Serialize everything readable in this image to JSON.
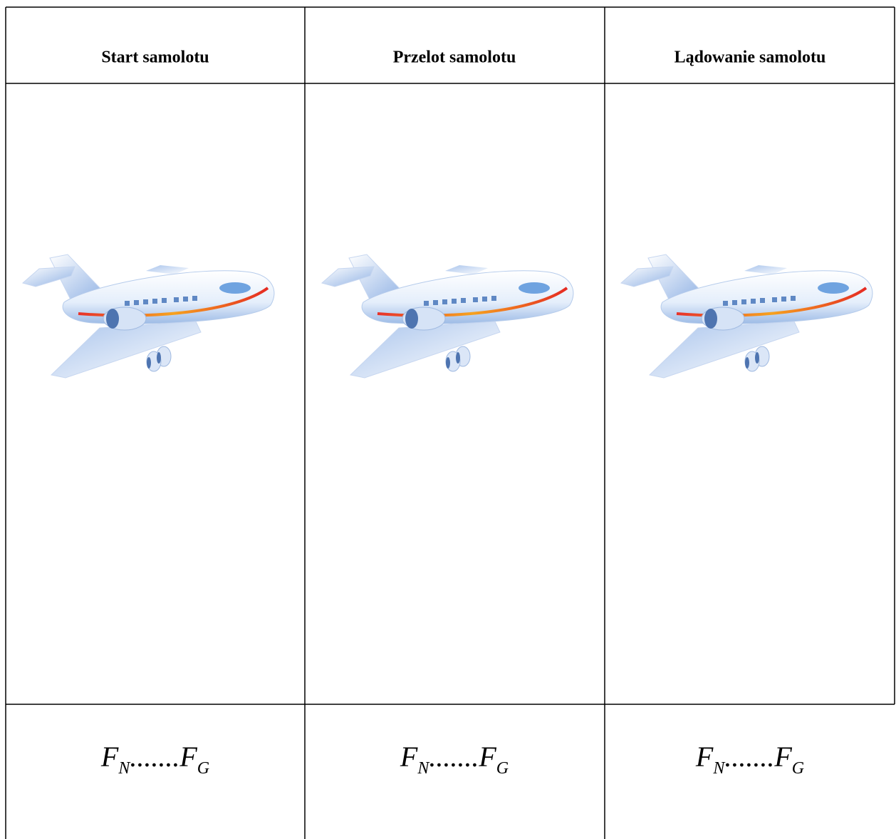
{
  "table": {
    "header": [
      "Start samolotu",
      "Przelot samolotu",
      "Lądowanie samolotu"
    ],
    "formulas": [
      {
        "left": "F",
        "left_sub": "N",
        "relation": ".......",
        "right": "F",
        "right_sub": "G"
      },
      {
        "left": "F",
        "left_sub": "N",
        "relation": ".......",
        "right": "F",
        "right_sub": "G"
      },
      {
        "left": "F",
        "left_sub": "N",
        "relation": ".......",
        "right": "F",
        "right_sub": "G"
      }
    ]
  }
}
